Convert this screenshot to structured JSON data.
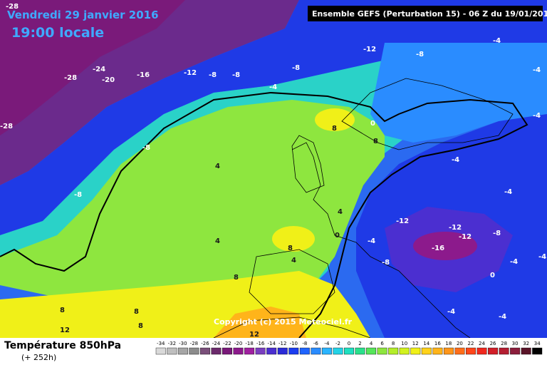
{
  "header": {
    "date_label": "Vendredi 29 janvier 2016",
    "time_label": "19:00 locale",
    "run_label": "Ensemble GEFS  (Perturbation 15)  -  06 Z du 19/01/2016"
  },
  "map": {
    "copyright": "Copyright (c) 2015 Meteociel.fr",
    "isotherm_labels": [
      {
        "id": "iso-1",
        "text": "-28"
      },
      {
        "id": "iso-2",
        "text": "-28"
      },
      {
        "id": "iso-3",
        "text": "-24"
      },
      {
        "id": "iso-4",
        "text": "-20"
      },
      {
        "id": "iso-5",
        "text": "-16"
      },
      {
        "id": "iso-6",
        "text": "-12"
      },
      {
        "id": "iso-7",
        "text": "-8"
      },
      {
        "id": "iso-8",
        "text": "-8"
      },
      {
        "id": "iso-9",
        "text": "-8"
      },
      {
        "id": "iso-10",
        "text": "-12"
      },
      {
        "id": "iso-11",
        "text": "-8"
      },
      {
        "id": "iso-12",
        "text": "-4"
      },
      {
        "id": "iso-13",
        "text": "-4"
      },
      {
        "id": "iso-14",
        "text": "-4"
      },
      {
        "id": "iso-15",
        "text": "-8"
      },
      {
        "id": "iso-16",
        "text": "4"
      },
      {
        "id": "iso-17",
        "text": "-8"
      },
      {
        "id": "iso-18",
        "text": "-28"
      },
      {
        "id": "iso-19",
        "text": "8"
      },
      {
        "id": "iso-20",
        "text": "0"
      },
      {
        "id": "iso-21",
        "text": "8"
      },
      {
        "id": "iso-22",
        "text": "-4"
      },
      {
        "id": "iso-23",
        "text": "-4"
      },
      {
        "id": "iso-24",
        "text": "4"
      },
      {
        "id": "iso-25",
        "text": "4"
      },
      {
        "id": "iso-26",
        "text": "0"
      },
      {
        "id": "iso-27",
        "text": "-4"
      },
      {
        "id": "iso-28",
        "text": "-12"
      },
      {
        "id": "iso-29",
        "text": "-12"
      },
      {
        "id": "iso-30",
        "text": "-12"
      },
      {
        "id": "iso-31",
        "text": "-16"
      },
      {
        "id": "iso-32",
        "text": "-8"
      },
      {
        "id": "iso-33",
        "text": "-8"
      },
      {
        "id": "iso-34",
        "text": "-4"
      },
      {
        "id": "iso-35",
        "text": "8"
      },
      {
        "id": "iso-36",
        "text": "4"
      },
      {
        "id": "iso-37",
        "text": "8"
      },
      {
        "id": "iso-38",
        "text": "8"
      },
      {
        "id": "iso-39",
        "text": "8"
      },
      {
        "id": "iso-40",
        "text": "12"
      },
      {
        "id": "iso-41",
        "text": "12"
      },
      {
        "id": "iso-42",
        "text": "8"
      },
      {
        "id": "iso-43",
        "text": "0"
      },
      {
        "id": "iso-44",
        "text": "-4"
      },
      {
        "id": "iso-45",
        "text": "-4"
      },
      {
        "id": "iso-46",
        "text": "-4"
      },
      {
        "id": "iso-47",
        "text": "-4"
      }
    ]
  },
  "legend": {
    "title": "Température 850hPa",
    "subtitle": "(+ 252h)",
    "ticks": [
      "-34",
      "-32",
      "-30",
      "-28",
      "-26",
      "-24",
      "-22",
      "-20",
      "-18",
      "-16",
      "-14",
      "-12",
      "-10",
      "-8",
      "-6",
      "-4",
      "-2",
      "0",
      "2",
      "4",
      "6",
      "8",
      "10",
      "12",
      "14",
      "16",
      "18",
      "20",
      "22",
      "24",
      "26",
      "28",
      "30",
      "32",
      "34"
    ],
    "colors": [
      "#d9d9d9",
      "#bfbfbf",
      "#a6a6a6",
      "#8c8c8c",
      "#7a4f7a",
      "#6b2a6b",
      "#7a1a7a",
      "#8c1a8c",
      "#a020a0",
      "#7a3fbf",
      "#4b2fd0",
      "#2b2bd8",
      "#1c3df0",
      "#1f64ff",
      "#2a8cff",
      "#2ab4ff",
      "#23d2e6",
      "#1fe0c0",
      "#2ae08c",
      "#55e65a",
      "#8ee63f",
      "#b4ee2a",
      "#d2f21f",
      "#f0f018",
      "#ffd21a",
      "#ffb41a",
      "#ff961a",
      "#ff6e1a",
      "#ff461a",
      "#f0281e",
      "#d21e28",
      "#b41e32",
      "#8c1e3c",
      "#5a1428",
      "#000000"
    ]
  }
}
